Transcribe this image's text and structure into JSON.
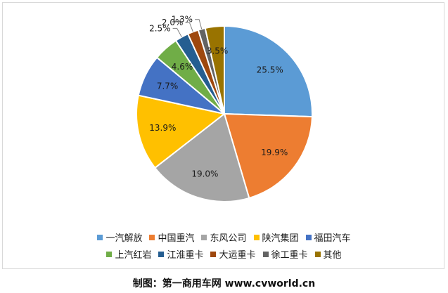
{
  "chart_data": {
    "type": "pie",
    "title": "",
    "start_angle_deg": 0,
    "direction": "clockwise",
    "legend_position": "bottom",
    "slices": [
      {
        "name": "一汽解放",
        "value": 25.5,
        "label": "25.5%",
        "color": "#5B9BD5"
      },
      {
        "name": "中国重汽",
        "value": 19.9,
        "label": "19.9%",
        "color": "#ED7D31"
      },
      {
        "name": "东风公司",
        "value": 19.0,
        "label": "19.0%",
        "color": "#A5A5A5"
      },
      {
        "name": "陕汽集团",
        "value": 13.9,
        "label": "13.9%",
        "color": "#FFC000"
      },
      {
        "name": "福田汽车",
        "value": 7.7,
        "label": "7.7%",
        "color": "#4472C4"
      },
      {
        "name": "上汽红岩",
        "value": 4.6,
        "label": "4.6%",
        "color": "#70AD47"
      },
      {
        "name": "江淮重卡",
        "value": 2.5,
        "label": "2.5%",
        "color": "#255E91"
      },
      {
        "name": "大运重卡",
        "value": 2.0,
        "label": "2.0%",
        "color": "#9E480E"
      },
      {
        "name": "徐工重卡",
        "value": 1.3,
        "label": "1.3%",
        "color": "#636363"
      },
      {
        "name": "其他",
        "value": 3.5,
        "label": "3.5%",
        "color": "#997300"
      }
    ]
  },
  "credit": "制图：第一商用车网 www.cvworld.cn"
}
